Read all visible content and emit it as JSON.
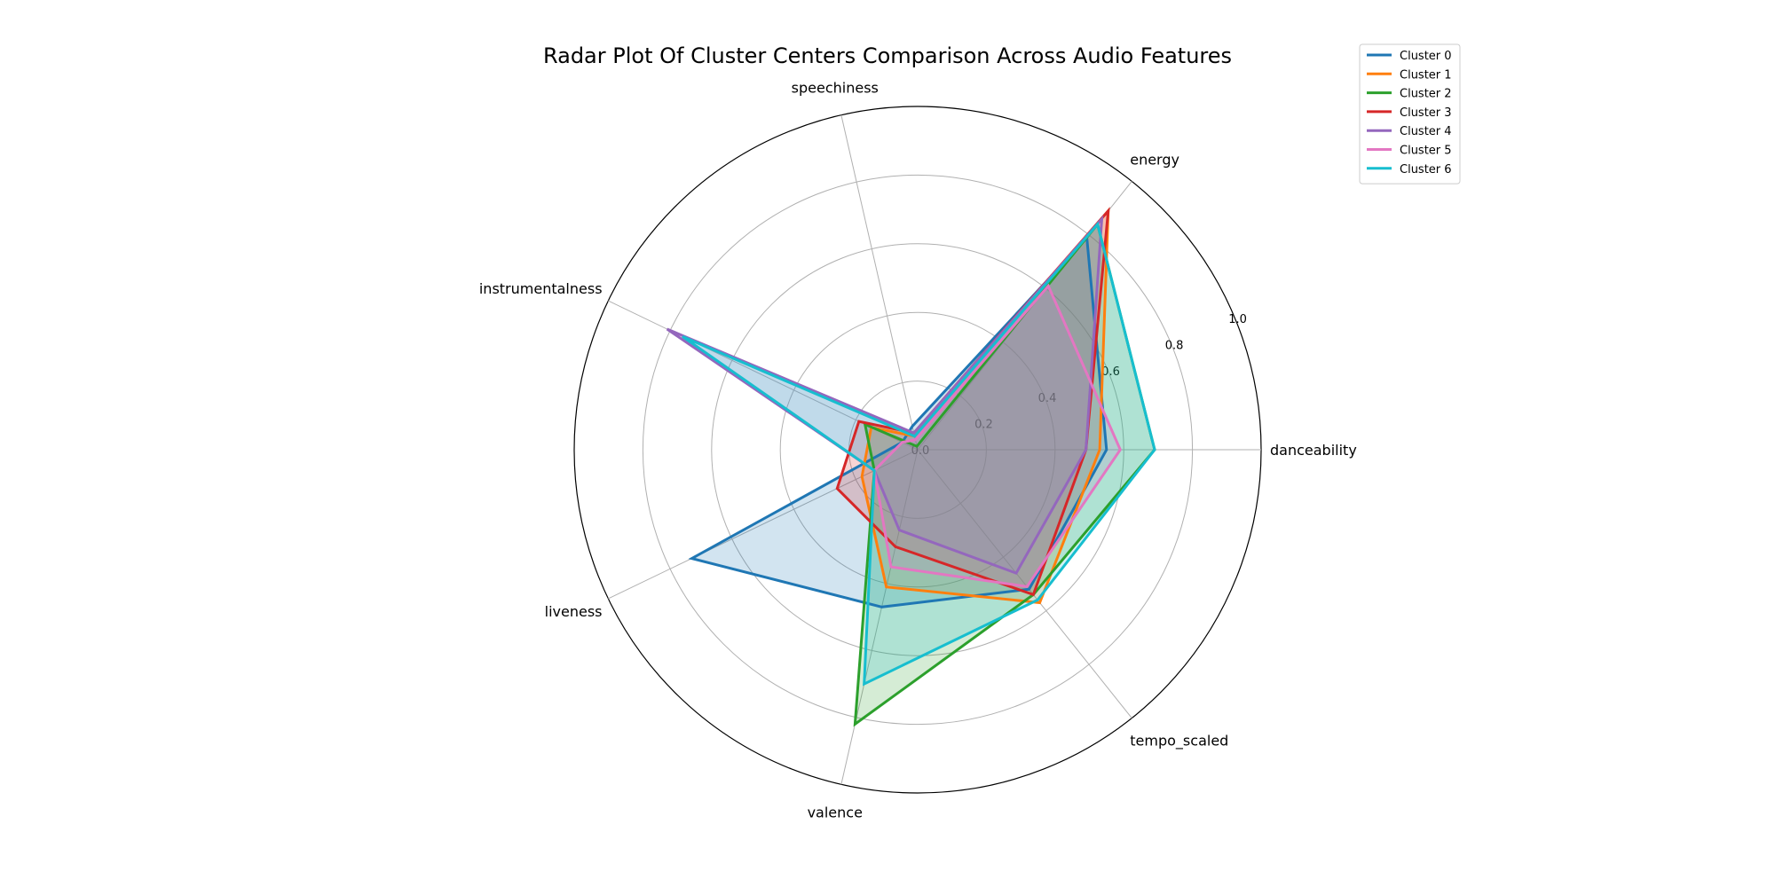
{
  "chart_data": {
    "type": "radar",
    "title": "Radar Plot Of Cluster Centers Comparison Across Audio Features",
    "axes": [
      "danceability",
      "energy",
      "speechiness",
      "instrumentalness",
      "liveness",
      "valence",
      "tempo_scaled"
    ],
    "rlim": [
      0,
      1.0
    ],
    "rticks": [
      0.0,
      0.2,
      0.4,
      0.6,
      0.8,
      1.0
    ],
    "rtick_labels": [
      "0.0",
      "0.2",
      "0.4",
      "0.6",
      "0.8",
      "1.0"
    ],
    "grid": true,
    "legend_position": "top-right",
    "series": [
      {
        "name": "Cluster 0",
        "color": "#1f77b4",
        "values": [
          0.55,
          0.79,
          0.07,
          0.05,
          0.73,
          0.47,
          0.52
        ]
      },
      {
        "name": "Cluster 1",
        "color": "#ff7f0e",
        "values": [
          0.53,
          0.89,
          0.04,
          0.15,
          0.18,
          0.41,
          0.57
        ]
      },
      {
        "name": "Cluster 2",
        "color": "#2ca02c",
        "values": [
          0.69,
          0.84,
          0.01,
          0.17,
          0.14,
          0.82,
          0.54
        ]
      },
      {
        "name": "Cluster 3",
        "color": "#d62728",
        "values": [
          0.49,
          0.89,
          0.05,
          0.19,
          0.26,
          0.29,
          0.54
        ]
      },
      {
        "name": "Cluster 4",
        "color": "#9467bd",
        "values": [
          0.49,
          0.86,
          0.05,
          0.81,
          0.14,
          0.24,
          0.46
        ]
      },
      {
        "name": "Cluster 5",
        "color": "#e377c2",
        "values": [
          0.59,
          0.61,
          0.03,
          0.05,
          0.14,
          0.35,
          0.51
        ]
      },
      {
        "name": "Cluster 6",
        "color": "#17becf",
        "values": [
          0.69,
          0.84,
          0.04,
          0.76,
          0.14,
          0.7,
          0.56
        ]
      }
    ]
  }
}
